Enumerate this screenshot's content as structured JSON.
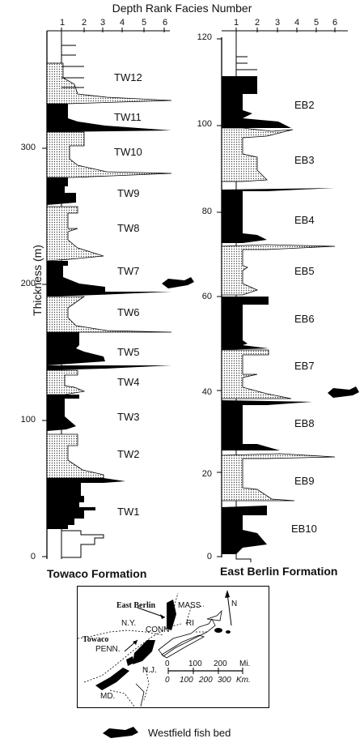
{
  "header": {
    "title": "Depth Rank Facies Number"
  },
  "axis": {
    "label": "Thickness  (m)"
  },
  "towaco": {
    "name": "Towaco Formation",
    "ticks": [
      "0",
      "100",
      "200",
      "300"
    ],
    "facies_ticks": [
      "1",
      "2",
      "3",
      "4",
      "5",
      "6"
    ],
    "units": [
      "TW12",
      "TW11",
      "TW10",
      "TW9",
      "TW8",
      "TW7",
      "TW6",
      "TW5",
      "TW4",
      "TW3",
      "TW2",
      "TW1"
    ]
  },
  "eastberlin": {
    "name": "East Berlin Formation",
    "ticks": [
      "0",
      "20",
      "40",
      "60",
      "80",
      "100",
      "120"
    ],
    "facies_ticks": [
      "1",
      "2",
      "3",
      "4",
      "5",
      "6"
    ],
    "units": [
      "EB2",
      "EB3",
      "EB4",
      "EB5",
      "EB6",
      "EB7",
      "EB8",
      "EB9",
      "EB10"
    ]
  },
  "map": {
    "labels": {
      "east_berlin": "East Berlin",
      "mass": "MASS",
      "ny": "N.Y.",
      "conn": "CONN",
      "ri": "RI",
      "towaco": "Towaco",
      "penn": "PENN.",
      "nj": "N.J.",
      "md": "MD.",
      "north": "N"
    },
    "scale": {
      "miles": [
        "0",
        "100",
        "200",
        "Mi."
      ],
      "km": [
        "0",
        "100",
        "200",
        "300",
        "Km."
      ]
    }
  },
  "legend": {
    "label": "Westfield fish bed"
  }
}
